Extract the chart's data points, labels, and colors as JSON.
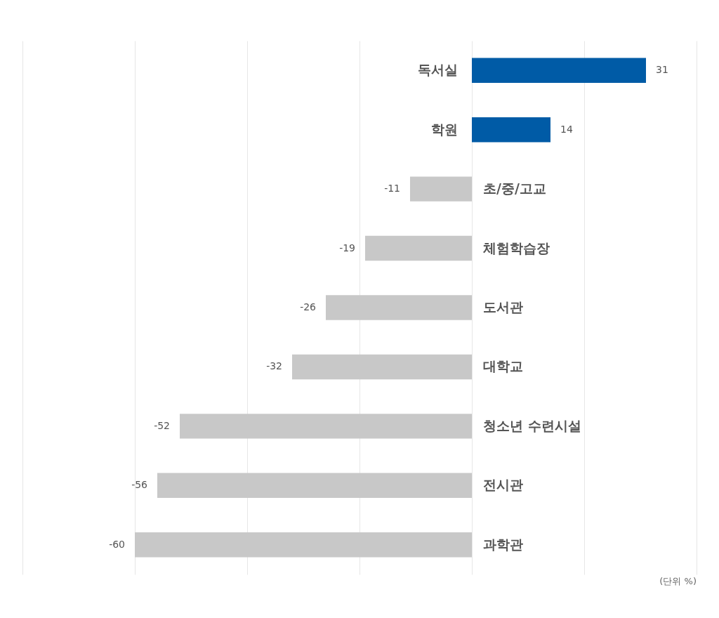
{
  "chart_data": {
    "type": "bar",
    "orientation": "horizontal",
    "categories": [
      "독서실",
      "학원",
      "초/중/고교",
      "체험학습장",
      "도서관",
      "대학교",
      "청소년 수련시설",
      "전시관",
      "과학관"
    ],
    "values": [
      31,
      14,
      -11,
      -19,
      -26,
      -32,
      -52,
      -56,
      -60
    ],
    "colors": [
      "#005ba6",
      "#005ba6",
      "#c8c8c8",
      "#c8c8c8",
      "#c8c8c8",
      "#c8c8c8",
      "#c8c8c8",
      "#c8c8c8",
      "#c8c8c8"
    ],
    "xlim": [
      -80,
      40
    ],
    "xticks": [
      {
        "value": -80,
        "label": null
      },
      {
        "value": -60,
        "label": null
      },
      {
        "value": -40,
        "label": null
      },
      {
        "value": -20,
        "label": null
      },
      {
        "value": 0,
        "label": null
      },
      {
        "value": 20,
        "label": null
      },
      {
        "value": 40,
        "label": null
      }
    ],
    "tick_labels": false,
    "grid": "x",
    "data_labels": true,
    "annotations": [
      "(단위 %)"
    ]
  }
}
